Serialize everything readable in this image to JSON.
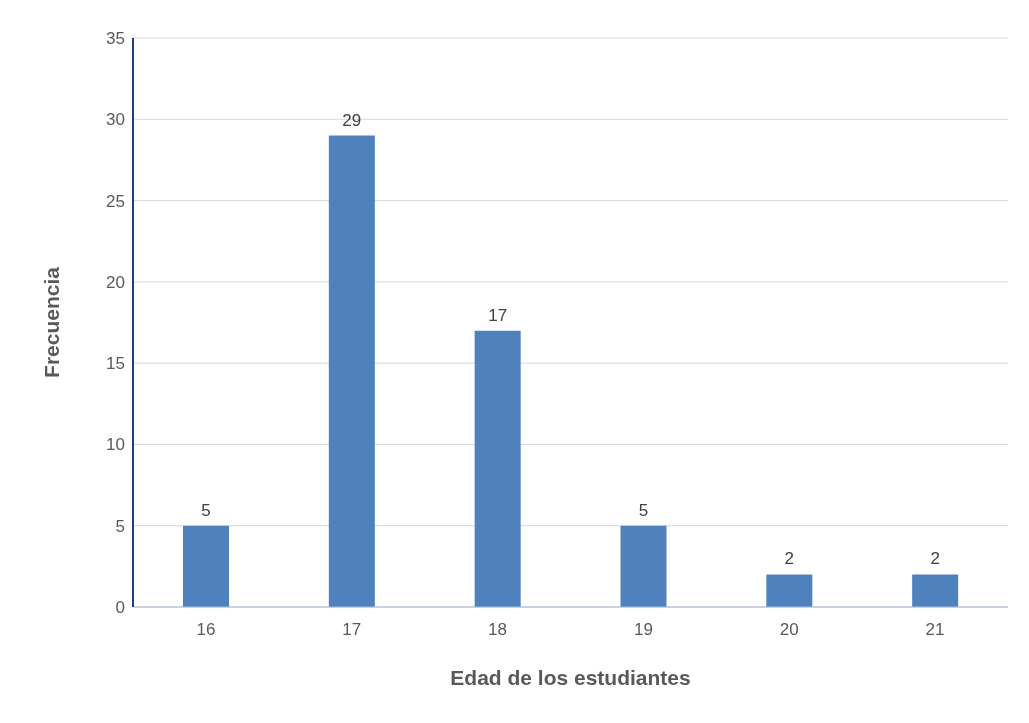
{
  "chart_data": {
    "type": "bar",
    "xlabel": "Edad de los estudiantes",
    "ylabel": "Frecuencia",
    "categories": [
      "16",
      "17",
      "18",
      "19",
      "20",
      "21"
    ],
    "values": [
      5,
      29,
      17,
      5,
      2,
      2
    ],
    "color": "#4f81bd",
    "ylim": [
      0,
      35
    ],
    "yticks": [
      0,
      5,
      10,
      15,
      20,
      25,
      30,
      35
    ],
    "grid": "y",
    "data_labels": true,
    "legend": false
  }
}
